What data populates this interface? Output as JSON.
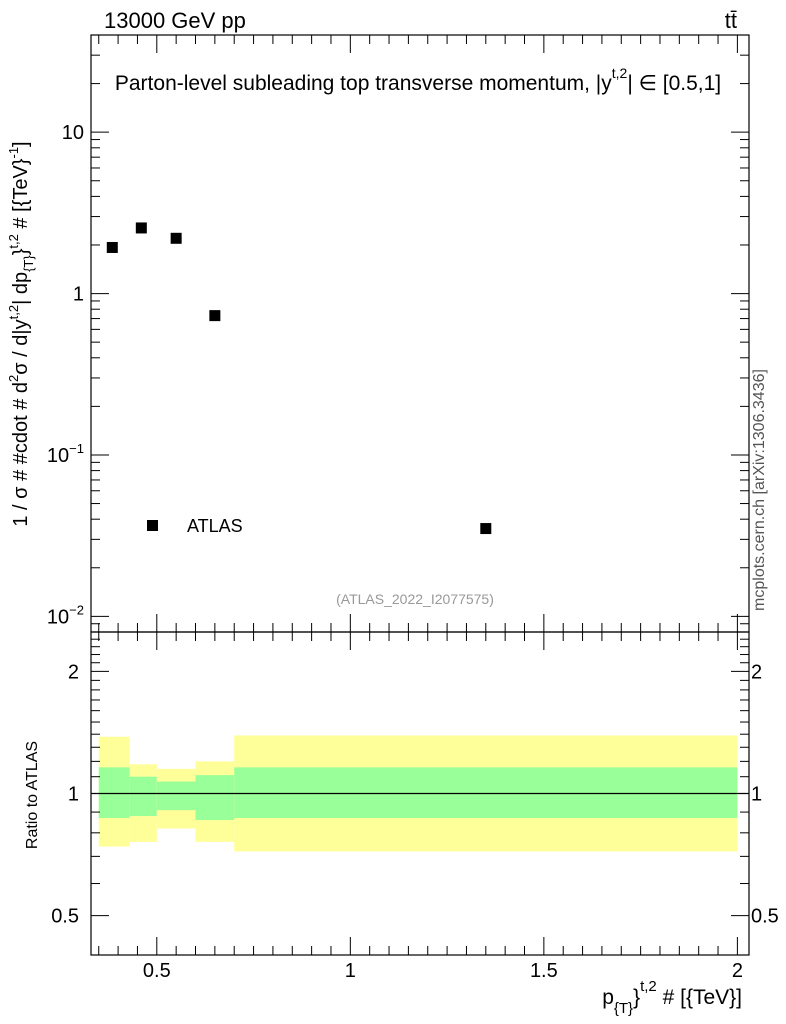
{
  "header": {
    "energy_label": "13000 GeV pp",
    "process_label": "tt̄"
  },
  "side_label": "mcplots.cern.ch [arXiv:1306.3436]",
  "chart_data": [
    {
      "type": "scatter",
      "panel": "main",
      "title": "Parton-level subleading top transverse momentum, |y^{t,2}| ∈ [0.5,1]",
      "title_main": "Parton-level subleading top transverse momentum, |",
      "title_y": "y",
      "title_sup": "t,2",
      "title_tail": "| ∈ [0.5,1]",
      "ylabel": "1 / σ # #cdot # d²σ / d|y^{t,2}| dp_{T}^{t,2} # [{TeV}^{-1}]",
      "yscale": "log",
      "ylim": [
        0.008,
        40
      ],
      "xlim": [
        0.33,
        2.03
      ],
      "y_ticks": [
        {
          "value": 10,
          "label": "10"
        },
        {
          "value": 1,
          "label": "1"
        },
        {
          "value": 0.1,
          "label": "10",
          "exp": "−1"
        },
        {
          "value": 0.01,
          "label": "10",
          "exp": "−2"
        }
      ],
      "series": [
        {
          "name": "ATLAS",
          "marker": "square",
          "color": "#000000",
          "points": [
            {
              "x": 0.385,
              "y": 1.93
            },
            {
              "x": 0.46,
              "y": 2.55
            },
            {
              "x": 0.55,
              "y": 2.2
            },
            {
              "x": 0.65,
              "y": 0.73
            },
            {
              "x": 1.35,
              "y": 0.035
            }
          ]
        }
      ],
      "legend": {
        "position": "bottom-left",
        "entries": [
          "ATLAS"
        ]
      },
      "annotation": "(ATLAS_2022_I2077575)"
    },
    {
      "type": "area",
      "panel": "ratio",
      "ylabel": "Ratio to ATLAS",
      "xlabel": "p_{T}^{t,2} # [{TeV}]",
      "xlim": [
        0.33,
        2.03
      ],
      "ylim": [
        0.4,
        2.5
      ],
      "yscale": "log",
      "x_ticks": [
        {
          "value": 0.5,
          "label": "0.5"
        },
        {
          "value": 1,
          "label": "1"
        },
        {
          "value": 1.5,
          "label": "1.5"
        },
        {
          "value": 2,
          "label": "2"
        }
      ],
      "y_ticks": [
        {
          "value": 2,
          "label": "2"
        },
        {
          "value": 1,
          "label": "1"
        },
        {
          "value": 0.5,
          "label": "0.5"
        }
      ],
      "bins": [
        {
          "x0": 0.35,
          "x1": 0.43,
          "stat_lo": 0.87,
          "stat_hi": 1.16,
          "tot_lo": 0.74,
          "tot_hi": 1.38
        },
        {
          "x0": 0.43,
          "x1": 0.5,
          "stat_lo": 0.88,
          "stat_hi": 1.1,
          "tot_lo": 0.76,
          "tot_hi": 1.18
        },
        {
          "x0": 0.5,
          "x1": 0.6,
          "stat_lo": 0.91,
          "stat_hi": 1.07,
          "tot_lo": 0.82,
          "tot_hi": 1.15
        },
        {
          "x0": 0.6,
          "x1": 0.7,
          "stat_lo": 0.86,
          "stat_hi": 1.11,
          "tot_lo": 0.76,
          "tot_hi": 1.2
        },
        {
          "x0": 0.7,
          "x1": 2.0,
          "stat_lo": 0.87,
          "stat_hi": 1.16,
          "tot_lo": 0.72,
          "tot_hi": 1.39
        }
      ],
      "reference_line": 1,
      "colors": {
        "stat_band": "#99ff99",
        "total_band": "#ffff99",
        "line": "#000000"
      }
    }
  ],
  "axis_text": {
    "main_ylabel_a": "1 / σ # #cdot # d",
    "main_ylabel_sup2": "2",
    "main_ylabel_b": "σ / d|y",
    "main_ylabel_sup_t2a": "t,2",
    "main_ylabel_c": "| dp",
    "main_ylabel_sub_T": "{T}",
    "main_ylabel_d": "}",
    "main_ylabel_sup_t2b": "t,2",
    "main_ylabel_e": " # [{TeV}",
    "main_ylabel_sup_m1": "-1",
    "main_ylabel_f": "]",
    "xlabel_p": "p",
    "xlabel_sub": "{T}",
    "xlabel_brace": "}",
    "xlabel_sup": "t,2",
    "xlabel_tail": " # [{TeV}]"
  }
}
